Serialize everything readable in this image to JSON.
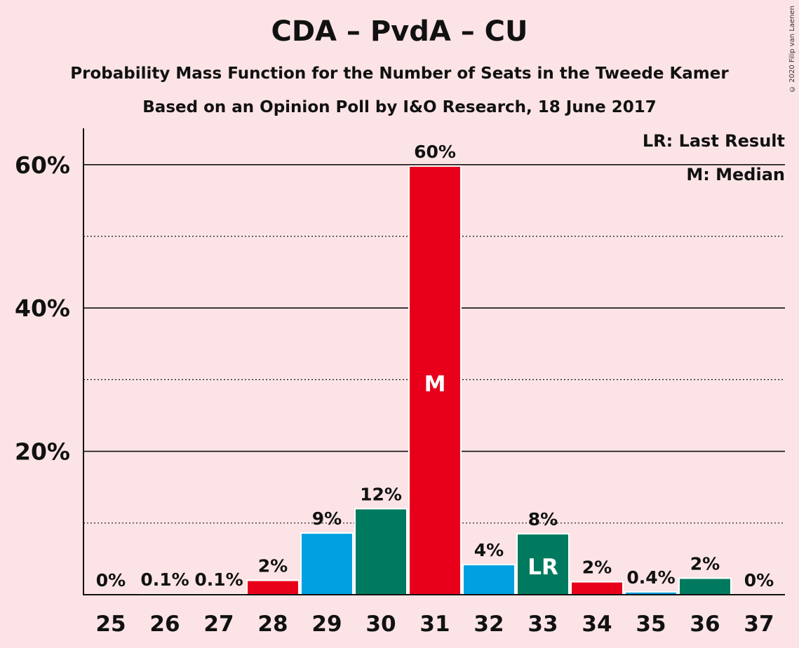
{
  "copyright": "© 2020 Filip van Laenen",
  "chart_data": {
    "type": "bar",
    "title": "CDA – PvdA – CU",
    "subtitle": "Probability Mass Function for the Number of Seats in the Tweede Kamer",
    "subtitle2": "Based on an Opinion Poll by I&O Research, 18 June 2017",
    "legend": [
      "LR: Last Result",
      "M: Median"
    ],
    "legend_position": "top-right",
    "categories": [
      "25",
      "26",
      "27",
      "28",
      "29",
      "30",
      "31",
      "32",
      "33",
      "34",
      "35",
      "36",
      "37"
    ],
    "values": [
      0,
      0.1,
      0.1,
      2,
      8.6,
      12,
      59.8,
      4.2,
      8.5,
      1.8,
      0.4,
      2.3,
      0
    ],
    "value_labels": [
      "0%",
      "0.1%",
      "0.1%",
      "2%",
      "9%",
      "12%",
      "60%",
      "4%",
      "8%",
      "2%",
      "0.4%",
      "2%",
      "0%"
    ],
    "bar_colors": [
      "#e8001b",
      "#00a0e1",
      "#007a5e",
      "#e8001b",
      "#00a0e1",
      "#007a5e",
      "#e8001b",
      "#00a0e1",
      "#007a5e",
      "#e8001b",
      "#00a0e1",
      "#007a5e",
      "#e8001b"
    ],
    "markers": {
      "6": "M",
      "8": "LR"
    },
    "ylim": [
      0,
      65
    ],
    "yticks": [
      20,
      40,
      60
    ],
    "ytick_labels": [
      "20%",
      "40%",
      "60%"
    ],
    "minor_gridlines": [
      10,
      30,
      50
    ],
    "grid": true
  }
}
